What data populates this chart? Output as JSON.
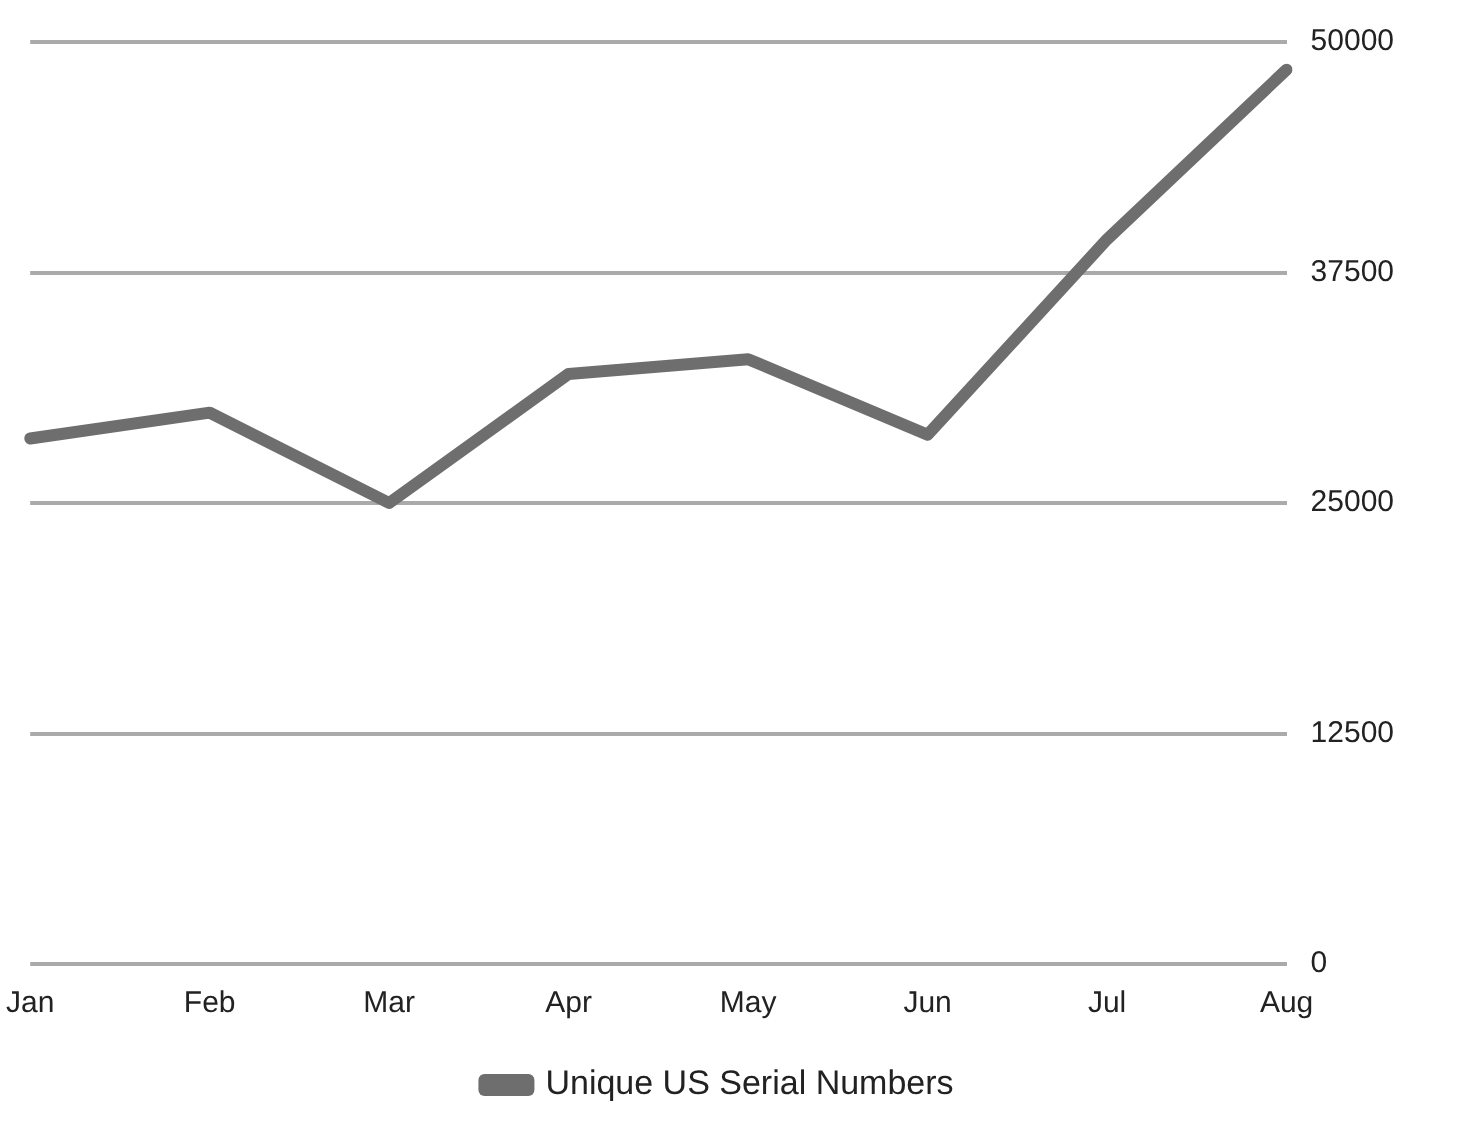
{
  "chart_data": {
    "type": "line",
    "categories": [
      "Jan",
      "Feb",
      "Mar",
      "Apr",
      "May",
      "Jun",
      "Jul",
      "Aug"
    ],
    "series": [
      {
        "name": "Unique US Serial Numbers",
        "color": "#6e6e6e",
        "values": [
          28500,
          29900,
          25000,
          32000,
          32800,
          28700,
          39300,
          48500
        ]
      }
    ],
    "ylim": [
      0,
      50000
    ],
    "yticks": [
      0,
      12500,
      25000,
      37500,
      50000
    ],
    "grid": "y",
    "legend": "bottom",
    "marker": "none",
    "line_style": "solid"
  }
}
